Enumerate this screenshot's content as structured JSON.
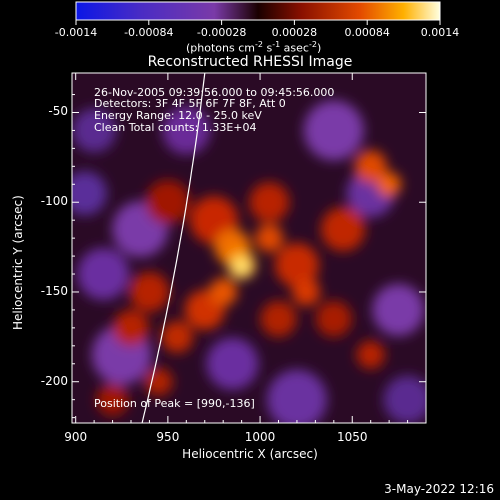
{
  "colorbar": {
    "ticks": [
      "-0.0014",
      "-0.00084",
      "-0.00028",
      "0.00028",
      "0.00084",
      "0.0014"
    ],
    "unit_label_main": "(photons cm",
    "unit_exp1": "-2",
    "unit_mid": " s",
    "unit_exp2": "-1",
    "unit_end": " asec",
    "unit_exp3": "-2",
    "unit_close": ")"
  },
  "chart_data": {
    "type": "heatmap",
    "title": "Reconstructed RHESSI Image",
    "xlabel": "Heliocentric X (arcsec)",
    "ylabel": "Heliocentric Y (arcsec)",
    "xlim": [
      898,
      1090
    ],
    "ylim": [
      -223,
      -28
    ],
    "xticks": [
      900,
      950,
      1000,
      1050
    ],
    "yticks": [
      -50,
      -100,
      -150,
      -200
    ],
    "xtick_labels": [
      "900",
      "950",
      "1000",
      "1050"
    ],
    "ytick_labels": [
      "-50",
      "-100",
      "-150",
      "-200"
    ],
    "value_range": [
      -0.0014,
      0.0014
    ],
    "colormap": "red-temperature",
    "peak": [
      990,
      -136
    ],
    "annotations": [
      "26-Nov-2005 09:39:56.000 to 09:45:56.000",
      "Detectors: 3F 4F 5F 6F 7F 8F, Att 0",
      "Energy Range: 12.0 - 25.0 keV",
      "Clean    Total counts: 1.33E+04"
    ],
    "peak_label": "Position of Peak = [990,-136]"
  },
  "footer": {
    "date": "3-May-2022 12:16"
  }
}
